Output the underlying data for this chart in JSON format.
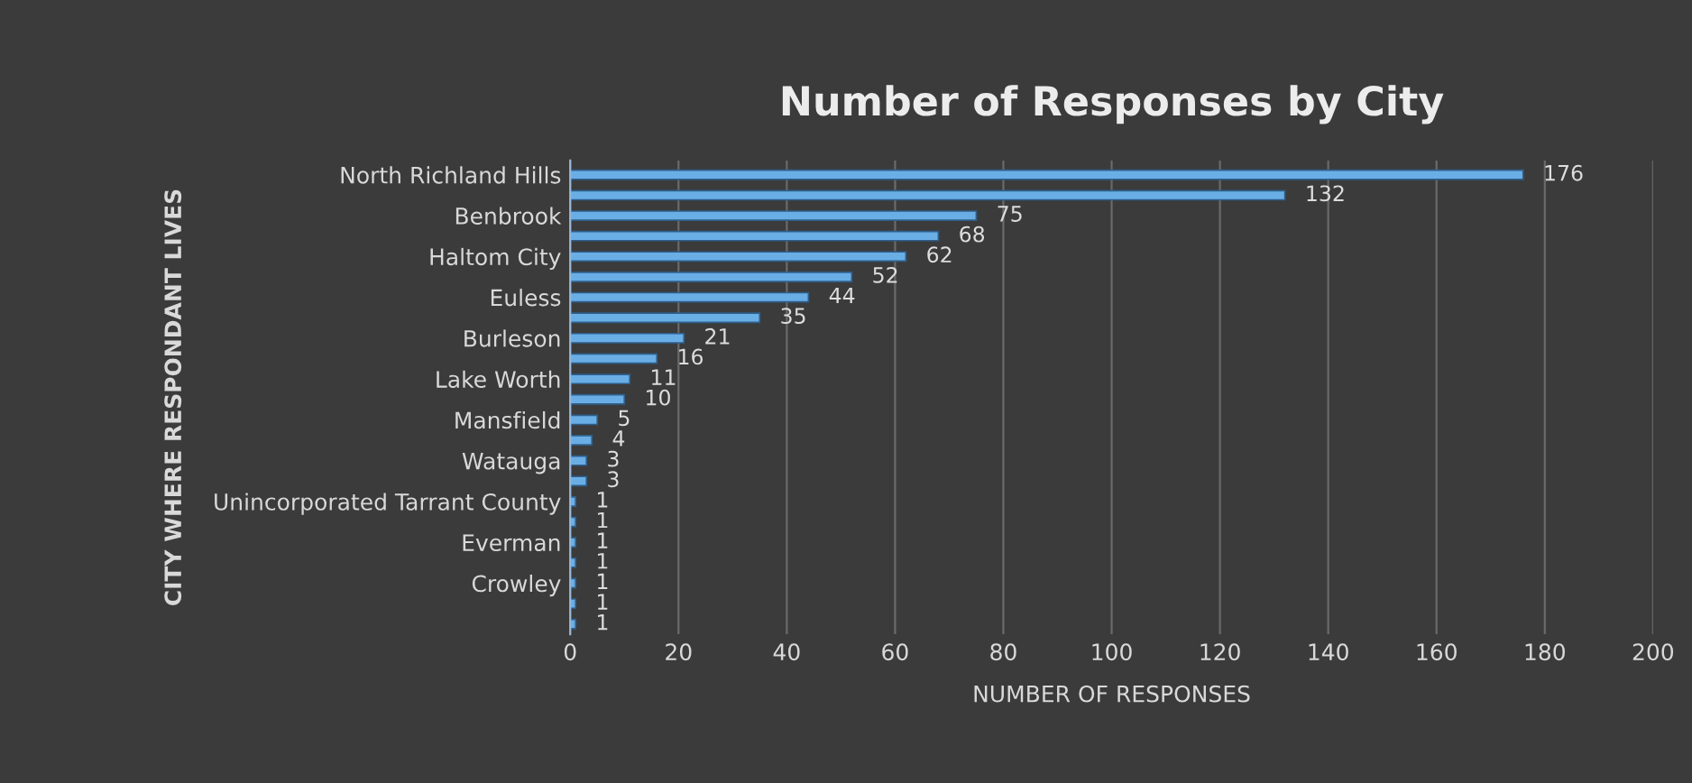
{
  "chart_data": {
    "type": "bar",
    "orientation": "horizontal",
    "title": "Number of Responses by City",
    "xlabel": "NUMBER OF RESPONSES",
    "ylabel": "CITY WHERE RESPONDANT LIVES",
    "categories": [
      "North Richland Hills",
      null,
      "Benbrook",
      null,
      "Haltom City",
      null,
      "Euless",
      null,
      "Burleson",
      null,
      "Lake Worth",
      null,
      "Mansfield",
      null,
      "Watauga",
      null,
      "Unincorporated Tarrant County",
      null,
      "Everman",
      null,
      "Crowley",
      null,
      null
    ],
    "values": [
      176,
      132,
      75,
      68,
      62,
      52,
      44,
      35,
      21,
      16,
      11,
      10,
      5,
      4,
      3,
      3,
      1,
      1,
      1,
      1,
      1,
      1,
      1
    ],
    "color": "#6aaee6",
    "xlim": [
      0,
      200
    ],
    "xticks": [
      0,
      20,
      40,
      60,
      80,
      100,
      120,
      140,
      160,
      180,
      200
    ],
    "grid": "x",
    "data_labels": true
  }
}
